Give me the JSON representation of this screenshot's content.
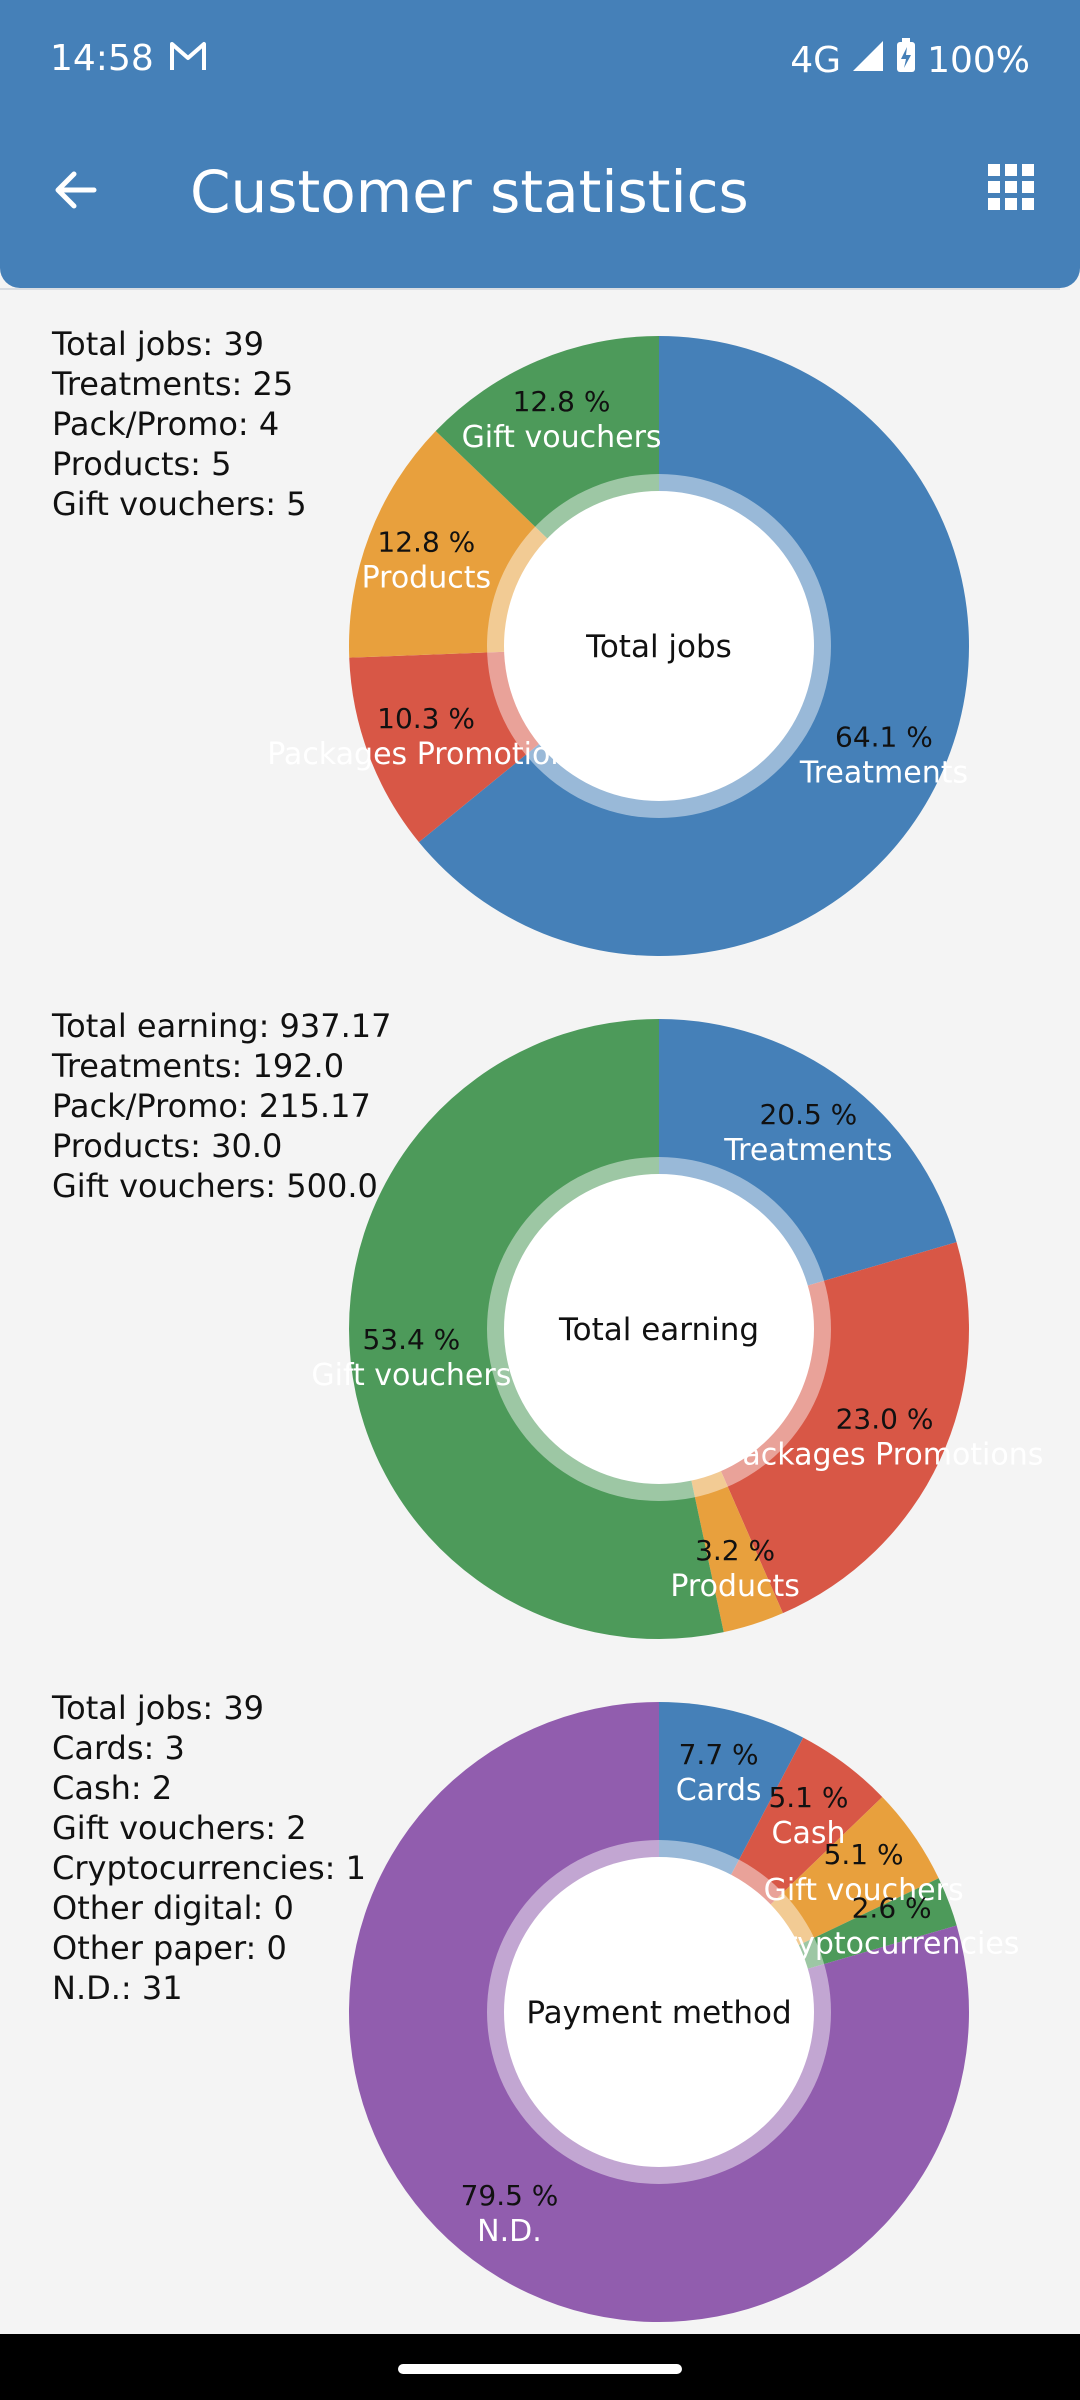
{
  "status_bar": {
    "time": "14:58",
    "network": "4G",
    "battery": "100%"
  },
  "app_bar": {
    "title": "Customer statistics",
    "back_icon": "arrow-back-icon",
    "menu_icon": "grid-icon"
  },
  "stats_jobs": [
    "Total jobs: 39",
    "Treatments: 25",
    "Pack/Promo: 4",
    "Products: 5",
    "Gift vouchers: 5"
  ],
  "stats_earning": [
    "Total earning: 937.17",
    "Treatments: 192.0",
    "Pack/Promo: 215.17",
    "Products: 30.0",
    "Gift vouchers: 500.0"
  ],
  "stats_payment": [
    "Total jobs: 39",
    "Cards: 3",
    "Cash: 2",
    "Gift vouchers: 2",
    "Cryptocurrencies: 1",
    "Other digital: 0",
    "Other paper: 0",
    "N.D.: 31"
  ],
  "colors": {
    "blue": "#4580b8",
    "red": "#d85746",
    "orange": "#e8a03d",
    "green": "#4d9a5a",
    "purple": "#915dae"
  },
  "chart_data": [
    {
      "type": "pie",
      "center_label": "Total jobs",
      "slices": [
        {
          "label": "Treatments",
          "percent_text": "64.1 %",
          "value": 64.1,
          "color": "#4580b8"
        },
        {
          "label": "Packages Promotions",
          "percent_text": "10.3 %",
          "value": 10.3,
          "color": "#d85746"
        },
        {
          "label": "Products",
          "percent_text": "12.8 %",
          "value": 12.8,
          "color": "#e8a03d"
        },
        {
          "label": "Gift vouchers",
          "percent_text": "12.8 %",
          "value": 12.8,
          "color": "#4d9a5a"
        }
      ]
    },
    {
      "type": "pie",
      "center_label": "Total earning",
      "slices": [
        {
          "label": "Treatments",
          "percent_text": "20.5 %",
          "value": 20.5,
          "color": "#4580b8"
        },
        {
          "label": "Packages Promotions",
          "percent_text": "23.0 %",
          "value": 23.0,
          "color": "#d85746"
        },
        {
          "label": "Products",
          "percent_text": "3.2 %",
          "value": 3.2,
          "color": "#e8a03d"
        },
        {
          "label": "Gift vouchers",
          "percent_text": "53.4 %",
          "value": 53.4,
          "color": "#4d9a5a"
        }
      ]
    },
    {
      "type": "pie",
      "center_label": "Payment method",
      "slices": [
        {
          "label": "Cards",
          "percent_text": "7.7 %",
          "value": 7.7,
          "color": "#4580b8"
        },
        {
          "label": "Cash",
          "percent_text": "5.1 %",
          "value": 5.1,
          "color": "#d85746"
        },
        {
          "label": "Gift vouchers",
          "percent_text": "5.1 %",
          "value": 5.1,
          "color": "#e8a03d"
        },
        {
          "label": "Cryptocurrencies",
          "percent_text": "2.6 %",
          "value": 2.6,
          "color": "#4d9a5a"
        },
        {
          "label": "N.D.",
          "percent_text": "79.5 %",
          "value": 79.5,
          "color": "#915dae"
        }
      ]
    }
  ]
}
